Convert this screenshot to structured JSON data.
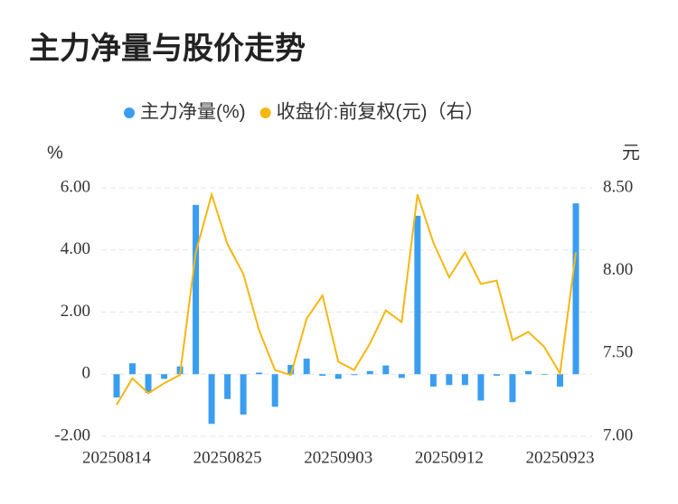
{
  "chart_data": {
    "type": "bar_line",
    "title": "主力净量与股价走势",
    "y_label": "%",
    "y2_label": "元",
    "categories": [
      "20250814",
      null,
      null,
      null,
      null,
      null,
      null,
      "20250825",
      null,
      null,
      null,
      null,
      null,
      null,
      "20250903",
      null,
      null,
      null,
      null,
      null,
      null,
      "20250912",
      null,
      null,
      null,
      null,
      null,
      null,
      "20250923",
      null
    ],
    "series": [
      {
        "name": "主力净量(%)",
        "color": "#3a9ef0",
        "kind": "bar",
        "values": [
          -0.75,
          0.35,
          -0.6,
          -0.15,
          0.25,
          5.45,
          -1.6,
          -0.8,
          -1.3,
          0.05,
          -1.05,
          0.3,
          0.5,
          -0.05,
          -0.15,
          -0.03,
          0.1,
          0.28,
          -0.12,
          5.1,
          -0.4,
          -0.35,
          -0.35,
          -0.85,
          -0.05,
          -0.9,
          0.1,
          -0.02,
          -0.4,
          5.5
        ]
      },
      {
        "name": "收盘价:前复权(元)（右）",
        "color": "#f5b712",
        "kind": "line",
        "axis": "y2",
        "values": [
          7.19,
          7.35,
          7.26,
          7.32,
          7.37,
          8.11,
          8.46,
          8.16,
          7.98,
          7.64,
          7.4,
          7.37,
          7.71,
          7.85,
          7.45,
          7.4,
          7.56,
          7.76,
          7.69,
          8.46,
          8.17,
          7.96,
          8.11,
          7.92,
          7.94,
          7.58,
          7.63,
          7.54,
          7.38,
          8.11
        ]
      }
    ],
    "ylim": [
      -2,
      6
    ],
    "yticks": [
      {
        "value": -2,
        "label": "-2.00"
      },
      0,
      {
        "value": 2,
        "label": "2.00"
      },
      {
        "value": 4,
        "label": "4.00"
      },
      {
        "value": 6,
        "label": "6.00"
      }
    ],
    "y2lim": [
      7,
      8.5
    ],
    "y2ticks": [
      {
        "value": 7,
        "label": "7.00"
      },
      {
        "value": 7.5,
        "label": "7.50"
      },
      {
        "value": 8,
        "label": "8.00"
      },
      {
        "value": 8.5,
        "label": "8.50"
      }
    ],
    "grid": true
  }
}
